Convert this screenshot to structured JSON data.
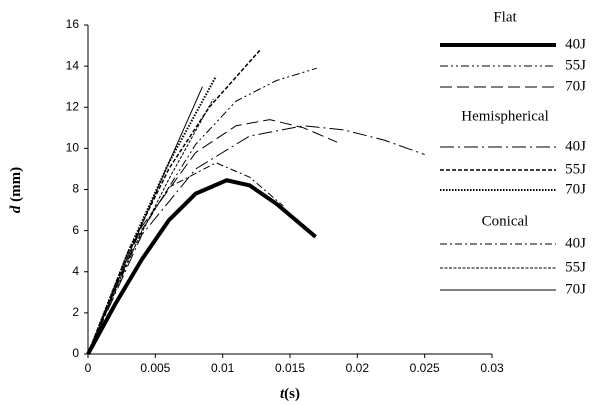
{
  "chart_data": {
    "type": "line",
    "xlabel": {
      "symbol": "t",
      "unit": "(s)"
    },
    "ylabel": {
      "symbol": "d",
      "unit": "(mm)"
    },
    "xlim": [
      0,
      0.03
    ],
    "xticks": [
      0,
      0.005,
      0.01,
      0.015,
      0.02,
      0.025,
      0.03
    ],
    "ylim": [
      0,
      16
    ],
    "yticks": [
      0,
      2,
      4,
      6,
      8,
      10,
      12,
      14,
      16
    ],
    "grid": false,
    "groups": [
      {
        "title": "Flat",
        "series": [
          {
            "name": "40J",
            "color": "#000",
            "width": 4,
            "dash": "",
            "x": [
              0,
              0.002,
              0.004,
              0.006,
              0.008,
              0.0103,
              0.012,
              0.014,
              0.0169
            ],
            "values": [
              0,
              2.4,
              4.6,
              6.5,
              7.8,
              8.45,
              8.2,
              7.3,
              5.7
            ]
          },
          {
            "name": "55J",
            "color": "#000",
            "width": 1,
            "dash": "8 3 2 3 2 3",
            "x": [
              0,
              0.004,
              0.008,
              0.011,
              0.014,
              0.017
            ],
            "values": [
              0,
              6,
              10.2,
              12.3,
              13.3,
              13.9
            ]
          },
          {
            "name": "70J",
            "color": "#000",
            "width": 1,
            "dash": "12 5",
            "x": [
              0,
              0.004,
              0.008,
              0.011,
              0.0135,
              0.016,
              0.0185
            ],
            "values": [
              0,
              6.2,
              9.8,
              11.1,
              11.4,
              11.0,
              10.3
            ]
          }
        ]
      },
      {
        "title": "Hemispherical",
        "series": [
          {
            "name": "40J",
            "color": "#000",
            "width": 1,
            "dash": "14 4 2 4",
            "x": [
              0,
              0.004,
              0.008,
              0.012,
              0.016,
              0.019,
              0.022,
              0.025
            ],
            "values": [
              0,
              5.8,
              9,
              10.6,
              11.1,
              10.9,
              10.4,
              9.7
            ]
          },
          {
            "name": "55J",
            "color": "#000",
            "width": 1.5,
            "dash": "4 2",
            "x": [
              0,
              0.003,
              0.006,
              0.009,
              0.0128
            ],
            "values": [
              0,
              5,
              9,
              12,
              14.8
            ]
          },
          {
            "name": "70J",
            "color": "#000",
            "width": 2,
            "dash": "1.5 1.5",
            "x": [
              0,
              0.003,
              0.006,
              0.0095
            ],
            "values": [
              0,
              5,
              9.3,
              13.5
            ]
          }
        ]
      },
      {
        "title": "Conical",
        "series": [
          {
            "name": "40J",
            "color": "#000",
            "width": 1,
            "dash": "7 3 2 3",
            "x": [
              0,
              0.003,
              0.006,
              0.0095,
              0.012,
              0.0145
            ],
            "values": [
              0,
              5,
              8.1,
              9.3,
              8.6,
              7.2
            ]
          },
          {
            "name": "55J",
            "color": "#000",
            "width": 1,
            "dash": "3 1.5",
            "x": [
              0,
              0.003,
              0.006,
              0.0093
            ],
            "values": [
              0,
              4.6,
              8.5,
              12.4
            ]
          },
          {
            "name": "70J",
            "color": "#000",
            "width": 1,
            "dash": "",
            "x": [
              0,
              0.003,
              0.006,
              0.0085
            ],
            "values": [
              0,
              4.8,
              9.3,
              13
            ]
          }
        ]
      }
    ]
  }
}
